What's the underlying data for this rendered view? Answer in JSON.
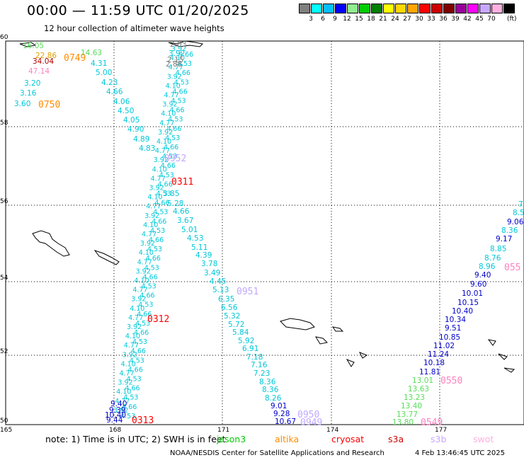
{
  "header": {
    "title": "00:00 — 11:59 UTC 01/20/2025",
    "subtitle": "12 hour collection of altimeter wave heights"
  },
  "legend": {
    "unit": "(ft)",
    "colors": [
      "#808080",
      "#00ffff",
      "#00bfff",
      "#0000ff",
      "#90ee90",
      "#00cc00",
      "#008000",
      "#ffff00",
      "#ffd700",
      "#ffa500",
      "#ff0000",
      "#cc0000",
      "#800000",
      "#990099",
      "#ff00ff",
      "#c8a8ff",
      "#ffb0e0",
      "#000000"
    ],
    "labels": [
      "3",
      "6",
      "9",
      "12",
      "15",
      "18",
      "21",
      "24",
      "27",
      "30",
      "33",
      "36",
      "39",
      "42",
      "45",
      "70"
    ]
  },
  "map": {
    "lon_ticks": [
      "165",
      "168",
      "171",
      "174",
      "177"
    ],
    "lat_ticks": [
      "60",
      "58",
      "56",
      "54",
      "52",
      "50"
    ],
    "colors": {
      "gridline": "#000000",
      "coast": "#000000",
      "jason": "#00cc00",
      "altika": "#ff8c00",
      "cryosat": "#ff0000",
      "s3a": "#cc0000",
      "s3b": "#c8a8ff",
      "swot": "#ffb0e0",
      "cyan": "#00c8d8",
      "blue": "#0000cc",
      "green": "#55dd55",
      "orange": "#ff8c00",
      "pink": "#ff80c0",
      "lilac": "#c0a8ff",
      "darkred": "#b00000",
      "grey": "#808080"
    }
  },
  "track_labels": [
    {
      "text": "0749",
      "color": "orange"
    },
    {
      "text": "0750",
      "color": "orange"
    },
    {
      "text": "0952",
      "color": "lilac"
    },
    {
      "text": "0311",
      "color": "cryosat"
    },
    {
      "text": "0951",
      "color": "lilac"
    },
    {
      "text": "0312",
      "color": "cryosat"
    },
    {
      "text": "0313",
      "color": "cryosat"
    },
    {
      "text": "0950",
      "color": "lilac"
    },
    {
      "text": "0949",
      "color": "lilac"
    },
    {
      "text": "0550",
      "color": "pink"
    },
    {
      "text": "0549",
      "color": "pink"
    },
    {
      "text": "055",
      "color": "pink"
    }
  ],
  "wave_values": [
    {
      "text": "16.05",
      "color": "green"
    },
    {
      "text": "22.86",
      "color": "gold"
    },
    {
      "text": "14.63",
      "color": "green"
    },
    {
      "text": "34.04",
      "color": "darkred"
    },
    {
      "text": "4.31",
      "color": "cyan"
    },
    {
      "text": "47.14",
      "color": "pink"
    },
    {
      "text": "5.00",
      "color": "cyan"
    },
    {
      "text": "3.20",
      "color": "cyan"
    },
    {
      "text": "4.23",
      "color": "cyan"
    },
    {
      "text": "3.16",
      "color": "cyan"
    },
    {
      "text": "4.66",
      "color": "cyan"
    },
    {
      "text": "3.60",
      "color": "cyan"
    },
    {
      "text": "4.06",
      "color": "cyan"
    },
    {
      "text": "4.50",
      "color": "cyan"
    },
    {
      "text": "4.05",
      "color": "cyan"
    },
    {
      "text": "4.90",
      "color": "cyan"
    },
    {
      "text": "4.89",
      "color": "cyan"
    },
    {
      "text": "4.83",
      "color": "cyan"
    },
    {
      "text": "2.03",
      "color": "grey"
    },
    {
      "text": "3.92",
      "color": "cyan"
    },
    {
      "text": "2.15",
      "color": "grey"
    },
    {
      "text": "2.88",
      "color": "grey"
    },
    {
      "text": "3.85",
      "color": "cyan"
    },
    {
      "text": "5.28",
      "color": "cyan"
    },
    {
      "text": "4.66",
      "color": "cyan"
    },
    {
      "text": "3.67",
      "color": "cyan"
    },
    {
      "text": "5.01",
      "color": "cyan"
    },
    {
      "text": "4.53",
      "color": "cyan"
    },
    {
      "text": "5.11",
      "color": "cyan"
    },
    {
      "text": "4.39",
      "color": "cyan"
    },
    {
      "text": "3.78",
      "color": "cyan"
    },
    {
      "text": "3.49",
      "color": "cyan"
    },
    {
      "text": "4.45",
      "color": "cyan"
    },
    {
      "text": "5.13",
      "color": "cyan"
    },
    {
      "text": "6.35",
      "color": "cyan"
    },
    {
      "text": "6.56",
      "color": "cyan"
    },
    {
      "text": "5.32",
      "color": "cyan"
    },
    {
      "text": "5.72",
      "color": "cyan"
    },
    {
      "text": "5.84",
      "color": "cyan"
    },
    {
      "text": "5.92",
      "color": "cyan"
    },
    {
      "text": "6.91",
      "color": "cyan"
    },
    {
      "text": "7.18",
      "color": "cyan"
    },
    {
      "text": "7.16",
      "color": "cyan"
    },
    {
      "text": "7.23",
      "color": "cyan"
    },
    {
      "text": "8.36",
      "color": "cyan"
    },
    {
      "text": "8.36",
      "color": "cyan"
    },
    {
      "text": "8.26",
      "color": "cyan"
    },
    {
      "text": "9.01",
      "color": "blue"
    },
    {
      "text": "9.28",
      "color": "blue"
    },
    {
      "text": "10.67",
      "color": "blue"
    },
    {
      "text": "9.40",
      "color": "blue"
    },
    {
      "text": "9.39",
      "color": "blue"
    },
    {
      "text": "10.40",
      "color": "blue"
    },
    {
      "text": "9.44",
      "color": "blue"
    },
    {
      "text": "7",
      "color": "cyan"
    },
    {
      "text": "8.5",
      "color": "cyan"
    },
    {
      "text": "9.06",
      "color": "blue"
    },
    {
      "text": "8.36",
      "color": "cyan"
    },
    {
      "text": "9.17",
      "color": "blue"
    },
    {
      "text": "8.85",
      "color": "cyan"
    },
    {
      "text": "8.76",
      "color": "cyan"
    },
    {
      "text": "8.96",
      "color": "cyan"
    },
    {
      "text": "9.40",
      "color": "blue"
    },
    {
      "text": "9.60",
      "color": "blue"
    },
    {
      "text": "10.01",
      "color": "blue"
    },
    {
      "text": "10.15",
      "color": "blue"
    },
    {
      "text": "10.40",
      "color": "blue"
    },
    {
      "text": "10.34",
      "color": "blue"
    },
    {
      "text": "9.51",
      "color": "blue"
    },
    {
      "text": "10.85",
      "color": "blue"
    },
    {
      "text": "11.02",
      "color": "blue"
    },
    {
      "text": "11.24",
      "color": "blue"
    },
    {
      "text": "10.18",
      "color": "blue"
    },
    {
      "text": "11.81",
      "color": "blue"
    },
    {
      "text": "13.01",
      "color": "green"
    },
    {
      "text": "13.63",
      "color": "green"
    },
    {
      "text": "13.23",
      "color": "green"
    },
    {
      "text": "13.40",
      "color": "green"
    },
    {
      "text": "13.77",
      "color": "green"
    },
    {
      "text": "13.80",
      "color": "green"
    }
  ],
  "footer": {
    "note": "note:  1) Time is in UTC;  2) SWH is in feet",
    "satellites": [
      "jason3",
      "altika",
      "cryosat",
      "s3a",
      "s3b",
      "swot"
    ],
    "credit": "NOAA/NESDIS Center for Satellite Applications and Research",
    "timestamp": "4 Feb 13:46:45 UTC 2025"
  }
}
